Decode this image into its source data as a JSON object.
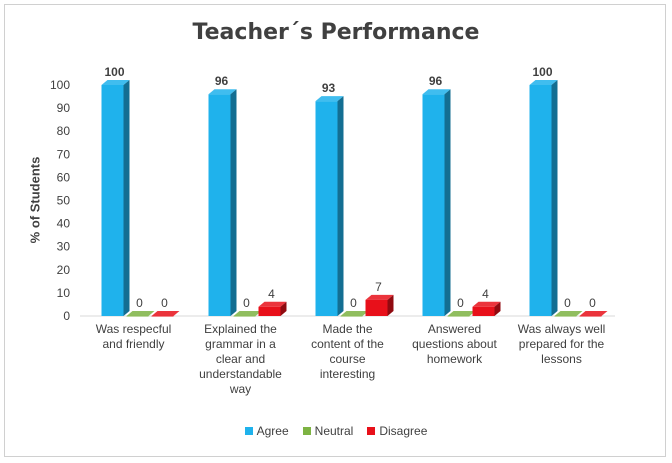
{
  "chart_data": {
    "type": "bar",
    "title": "Teacher´s Performance",
    "ylabel": "% of Students",
    "xlabel": "",
    "ylim": [
      0,
      100
    ],
    "yticks": [
      0,
      10,
      20,
      30,
      40,
      50,
      60,
      70,
      80,
      90,
      100
    ],
    "categories": [
      [
        "Was respecful",
        "and friendly"
      ],
      [
        "Explained the",
        "grammar in a",
        "clear and",
        "understandable",
        "way"
      ],
      [
        "Made the",
        "content of the",
        "course",
        "interesting"
      ],
      [
        "Answered",
        "questions about",
        "homework"
      ],
      [
        "Was always well",
        "prepared for the",
        "lessons"
      ]
    ],
    "series": [
      {
        "name": "Agree",
        "values": [
          100,
          96,
          93,
          96,
          100
        ],
        "color": "#1FB2EC"
      },
      {
        "name": "Neutral",
        "values": [
          0,
          0,
          0,
          0,
          0
        ],
        "color": "#7DB343"
      },
      {
        "name": "Disagree",
        "values": [
          0,
          4,
          7,
          4,
          0
        ],
        "color": "#E8101A"
      }
    ],
    "legend_position": "bottom",
    "grid": false
  }
}
